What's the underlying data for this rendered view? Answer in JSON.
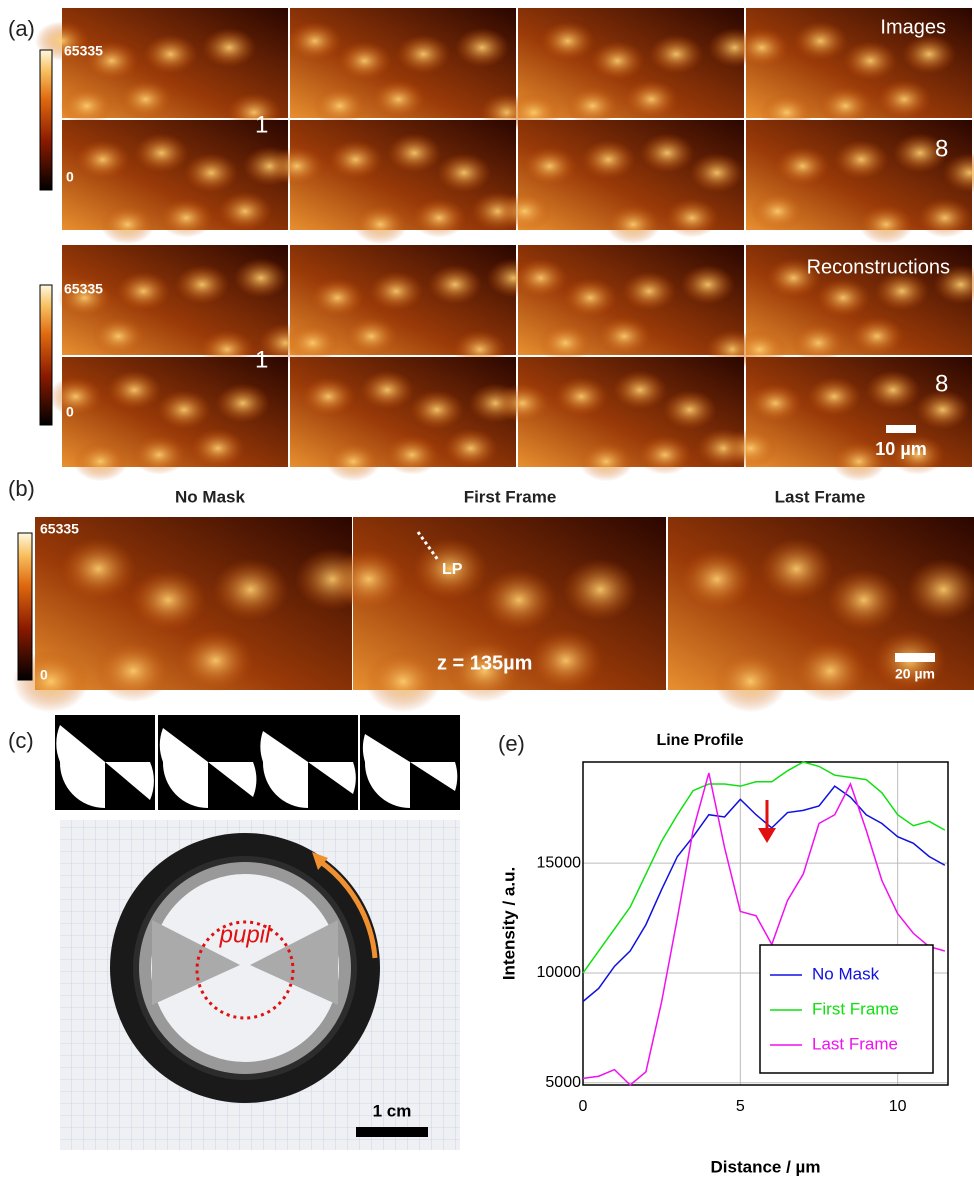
{
  "panel_a": {
    "label": "(a)",
    "colorbar_max": "65335",
    "colorbar_min": "0",
    "frame_first": "1",
    "frame_last": "8",
    "images_title": "Images",
    "recon_title": "Reconstructions",
    "scalebar": "10 µm"
  },
  "panel_b": {
    "label": "(b)",
    "titles": [
      "No Mask",
      "First Frame",
      "Last Frame"
    ],
    "colorbar_max": "65335",
    "colorbar_min": "0",
    "line_profile": "LP",
    "depth": "z = 135µm",
    "scalebar": "20 µm"
  },
  "panel_c": {
    "label": "(c)",
    "pupil": "pupil",
    "scalebar": "1 cm"
  },
  "chart_data": {
    "type": "line",
    "label": "(e)",
    "title": "Line Profile",
    "x_label": "Distance / µm",
    "y_label": "Intensity / a.u.",
    "x": [
      0,
      0.5,
      1,
      1.5,
      2,
      2.5,
      3,
      3.5,
      4,
      4.5,
      5,
      5.5,
      6,
      6.5,
      7,
      7.5,
      8,
      8.5,
      9,
      9.5,
      10,
      10.5,
      11,
      11.5
    ],
    "series": [
      {
        "name": "No Mask",
        "color": "#1010e0",
        "values": [
          8700,
          9300,
          10300,
          11000,
          12200,
          13800,
          15300,
          16200,
          17200,
          17100,
          17900,
          17200,
          16600,
          17300,
          17400,
          17600,
          18500,
          18000,
          17200,
          16800,
          16200,
          15900,
          15300,
          14900
        ]
      },
      {
        "name": "First Frame",
        "color": "#10e010",
        "values": [
          10000,
          11000,
          12000,
          13000,
          14500,
          16000,
          17200,
          18300,
          18600,
          18600,
          18500,
          18700,
          18700,
          19200,
          19600,
          19400,
          19000,
          18900,
          18800,
          18200,
          17200,
          16700,
          16900,
          16500
        ]
      },
      {
        "name": "Last Frame",
        "color": "#f010f0",
        "values": [
          5200,
          5300,
          5600,
          4900,
          5500,
          8700,
          12500,
          16500,
          19100,
          15700,
          12800,
          12600,
          11300,
          13300,
          14500,
          16800,
          17200,
          18600,
          16500,
          14200,
          12700,
          11800,
          11200,
          11000
        ]
      }
    ],
    "xlim": [
      0,
      11.6
    ],
    "ylim": [
      4900,
      19600
    ],
    "xticks": [
      0,
      5,
      10
    ],
    "yticks": [
      5000,
      10000,
      15000
    ],
    "grid": true,
    "legend": "lower right"
  }
}
